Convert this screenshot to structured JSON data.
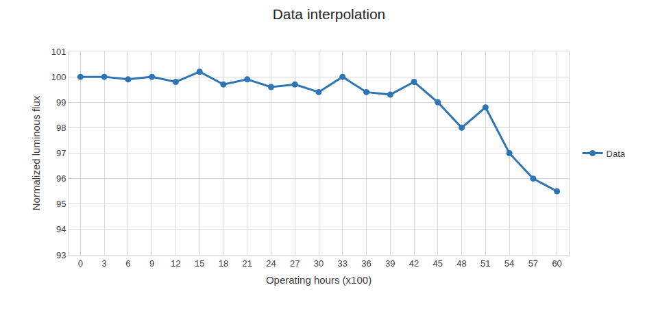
{
  "chart_data": {
    "type": "line",
    "title": "Data interpolation",
    "x_label": "Operating hours (x100)",
    "y_label": "Normalized luminous flux",
    "categories": [
      "0",
      "3",
      "6",
      "9",
      "12",
      "15",
      "18",
      "21",
      "24",
      "27",
      "30",
      "33",
      "36",
      "39",
      "42",
      "45",
      "48",
      "51",
      "54",
      "57",
      "60"
    ],
    "series": [
      {
        "name": "Data",
        "color": "#2e75b6",
        "marker": "circle",
        "line_style": "solid",
        "values": [
          100,
          100,
          99.9,
          100,
          99.8,
          100.2,
          99.7,
          99.9,
          99.6,
          99.7,
          99.4,
          100,
          99.4,
          99.3,
          99.8,
          99,
          98,
          98.8,
          97,
          96,
          95.5
        ]
      }
    ],
    "ylim": [
      93,
      101
    ],
    "yticks": [
      93,
      94,
      95,
      96,
      97,
      98,
      99,
      100,
      101
    ],
    "grid": true,
    "legend": "right"
  }
}
